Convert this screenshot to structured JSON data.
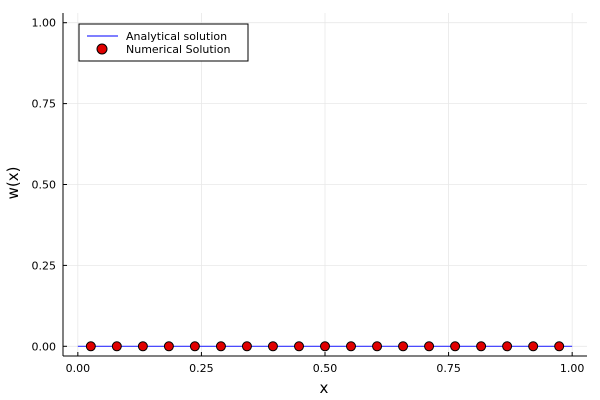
{
  "chart_data": {
    "type": "line",
    "xlabel": "x",
    "ylabel": "w(x)",
    "xlim": [
      -0.03,
      1.03
    ],
    "ylim": [
      -0.03,
      1.03
    ],
    "xticks": [
      0.0,
      0.25,
      0.5,
      0.75,
      1.0
    ],
    "xtick_labels": [
      "0.00",
      "0.25",
      "0.50",
      "0.75",
      "1.00"
    ],
    "yticks": [
      0.0,
      0.25,
      0.5,
      0.75,
      1.0
    ],
    "ytick_labels": [
      "0.00",
      "0.25",
      "0.50",
      "0.75",
      "1.00"
    ],
    "grid": true,
    "legend_position": "top-left",
    "series": [
      {
        "name": "Analytical solution",
        "kind": "line",
        "color": "#3333ff",
        "x": [
          0.0,
          1.0
        ],
        "y": [
          0.0,
          0.0
        ]
      },
      {
        "name": "Numerical Solution",
        "kind": "scatter",
        "color": "#e00000",
        "x": [
          0.0263,
          0.0789,
          0.1316,
          0.1842,
          0.2368,
          0.2895,
          0.3421,
          0.3947,
          0.4474,
          0.5,
          0.5526,
          0.6053,
          0.6579,
          0.7105,
          0.7632,
          0.8158,
          0.8684,
          0.9211,
          0.9737
        ],
        "y": [
          0,
          0,
          0,
          0,
          0,
          0,
          0,
          0,
          0,
          0,
          0,
          0,
          0,
          0,
          0,
          0,
          0,
          0,
          0
        ]
      }
    ]
  }
}
